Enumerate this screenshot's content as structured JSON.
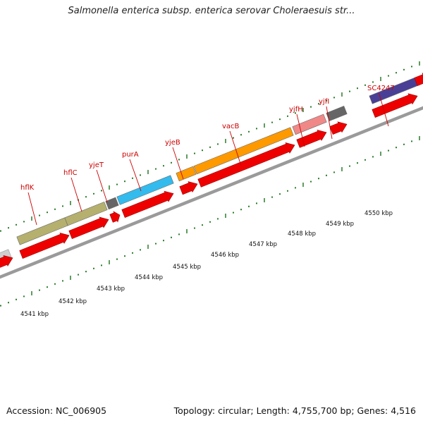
{
  "title": "Salmonella enterica subsp. enterica serovar Choleraesuis str...",
  "footer": {
    "accession": "Accession: NC_006905",
    "summary": "Topology: circular; Length: 4,755,700 bp; Genes: 4,516"
  },
  "colors": {
    "backbone": "#9a9a9a",
    "cds": "#ee0000",
    "label": "#cc0000",
    "tick": "#2a7a2a"
  },
  "genes": [
    {
      "name": "hflK",
      "color": "#b5b06e"
    },
    {
      "name": "hflC",
      "color": "#b5b06e"
    },
    {
      "name": "yjeT",
      "color": "#666666"
    },
    {
      "name": "purA",
      "color": "#33bbee"
    },
    {
      "name": "yjeB",
      "color": "#ff9900"
    },
    {
      "name": "vacB",
      "color": "#ff9900"
    },
    {
      "name": "yjfH",
      "color": "#f08888"
    },
    {
      "name": "yjfI",
      "color": "#666666"
    },
    {
      "name": "SC4247",
      "color": "#4a3f96"
    }
  ],
  "ruler_labels": [
    "4541 kbp",
    "4542 kbp",
    "4543 kbp",
    "4544 kbp",
    "4545 kbp",
    "4546 kbp",
    "4547 kbp",
    "4548 kbp",
    "4549 kbp",
    "4550 kbp"
  ]
}
